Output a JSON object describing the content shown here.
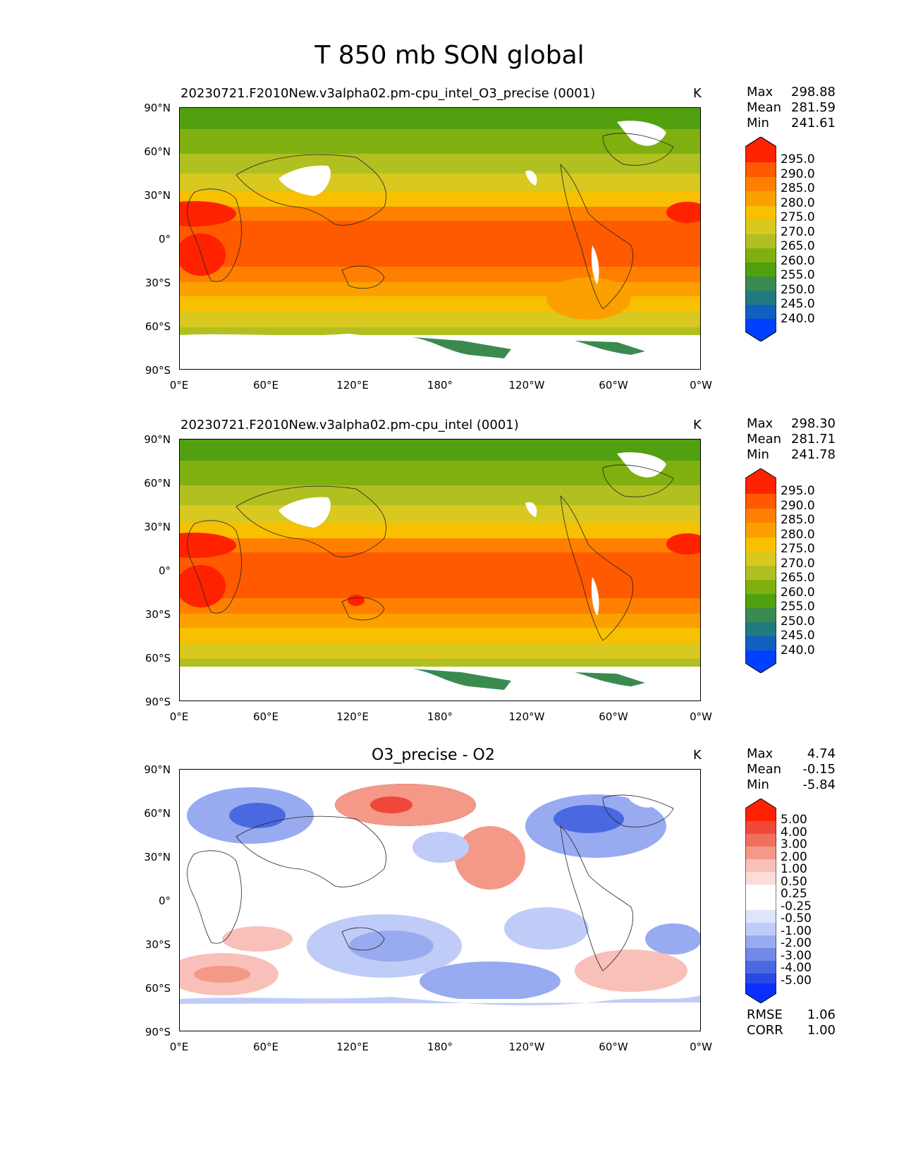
{
  "title": "T 850 mb SON global",
  "units": "K",
  "lat_ticks": [
    "90°N",
    "60°N",
    "30°N",
    "0°",
    "30°S",
    "60°S",
    "90°S"
  ],
  "lon_ticks": [
    "0°E",
    "60°E",
    "120°E",
    "180°",
    "120°W",
    "60°W",
    "0°W"
  ],
  "panels": [
    {
      "title": "20230721.F2010New.v3alpha02.pm-cpu_intel_O3_precise (0001)",
      "stats": {
        "max_label": "Max",
        "max": "298.88",
        "mean_label": "Mean",
        "mean": "281.59",
        "min_label": "Min",
        "min": "241.61"
      },
      "colorbar_labels": [
        "295.0",
        "290.0",
        "285.0",
        "280.0",
        "275.0",
        "270.0",
        "265.0",
        "260.0",
        "255.0",
        "250.0",
        "245.0",
        "240.0"
      ]
    },
    {
      "title": "20230721.F2010New.v3alpha02.pm-cpu_intel (0001)",
      "stats": {
        "max_label": "Max",
        "max": "298.30",
        "mean_label": "Mean",
        "mean": "281.71",
        "min_label": "Min",
        "min": "241.78"
      },
      "colorbar_labels": [
        "295.0",
        "290.0",
        "285.0",
        "280.0",
        "275.0",
        "270.0",
        "265.0",
        "260.0",
        "255.0",
        "250.0",
        "245.0",
        "240.0"
      ]
    },
    {
      "title": "O3_precise - O2",
      "stats": {
        "max_label": "Max",
        "max": "4.74",
        "mean_label": "Mean",
        "mean": "-0.15",
        "min_label": "Min",
        "min": "-5.84"
      },
      "colorbar_labels": [
        "5.00",
        "4.00",
        "3.00",
        "2.00",
        "1.00",
        "0.50",
        "0.25",
        "-0.25",
        "-0.50",
        "-1.00",
        "-2.00",
        "-3.00",
        "-4.00",
        "-5.00"
      ],
      "rmse_label": "RMSE",
      "rmse": "1.06",
      "corr_label": "CORR",
      "corr": "1.00"
    }
  ],
  "colors": {
    "temp_scale": [
      "#ff2200",
      "#ff5a00",
      "#ff8000",
      "#fca000",
      "#f8c000",
      "#d8c820",
      "#b0c020",
      "#80b010",
      "#50a010",
      "#3a8a50",
      "#207a80",
      "#1060c0",
      "#0040ff"
    ],
    "diff_scale": [
      "#ff2200",
      "#f04838",
      "#f07060",
      "#f49888",
      "#f8c0b8",
      "#fbdcd6",
      "#ffffff",
      "#ffffff",
      "#dde4fb",
      "#c0ccf8",
      "#98aaf0",
      "#7088e8",
      "#4a68e0",
      "#2848e8",
      "#0a30ff"
    ]
  }
}
